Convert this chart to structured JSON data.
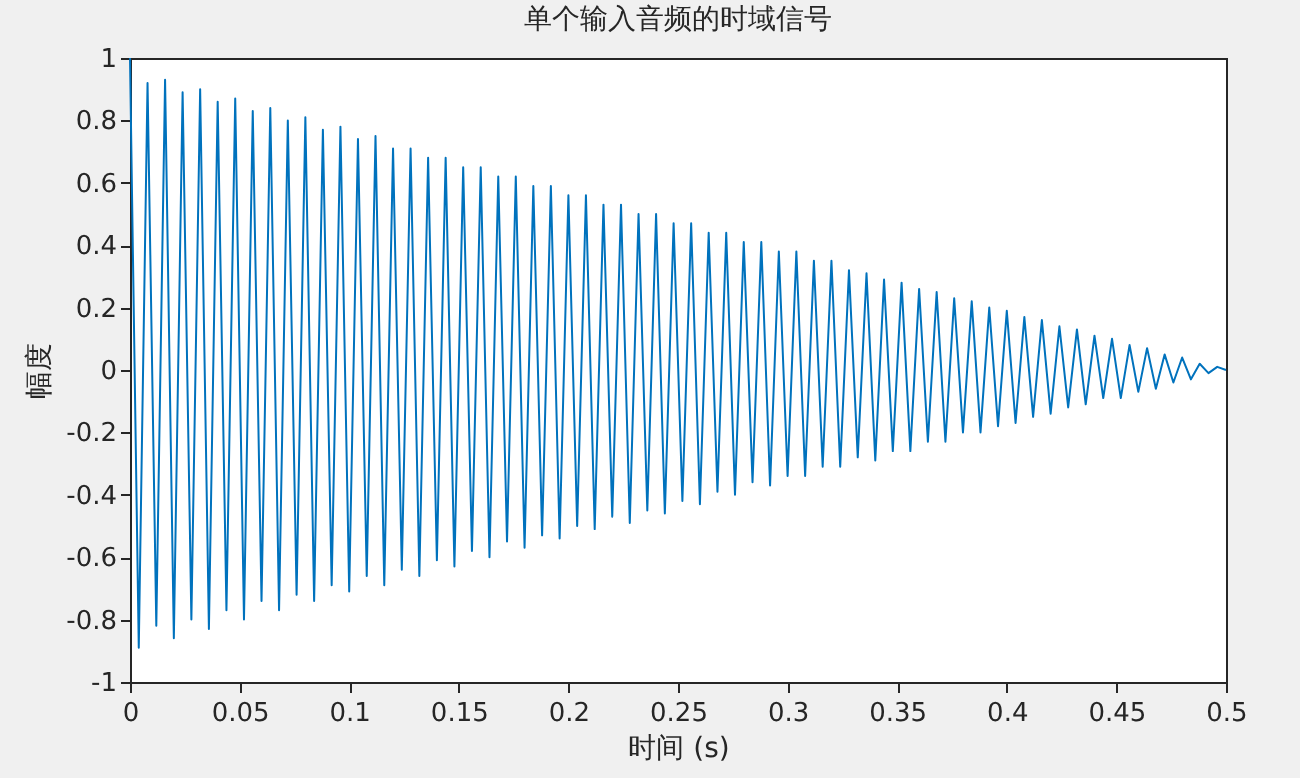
{
  "chart_data": {
    "type": "line",
    "title": "单个输入音频的时域信号",
    "xlabel": "时间 (s)",
    "ylabel": "幅度",
    "xlim": [
      0,
      0.5
    ],
    "ylim": [
      -1,
      1
    ],
    "xticks": [
      0,
      0.05,
      0.1,
      0.15,
      0.2,
      0.25,
      0.3,
      0.35,
      0.4,
      0.45,
      0.5
    ],
    "yticks": [
      -1,
      -0.8,
      -0.6,
      -0.4,
      -0.2,
      0,
      0.2,
      0.4,
      0.6,
      0.8,
      1
    ],
    "grid": false,
    "marker": "none",
    "line_style": "solid",
    "x": [
      0,
      0.004,
      0.008,
      0.012,
      0.016,
      0.02,
      0.024,
      0.028,
      0.032,
      0.036,
      0.04,
      0.044,
      0.048,
      0.052,
      0.056,
      0.06,
      0.064,
      0.068,
      0.072,
      0.076,
      0.08,
      0.084,
      0.088,
      0.092,
      0.096,
      0.1,
      0.104,
      0.108,
      0.112,
      0.116,
      0.12,
      0.124,
      0.128,
      0.132,
      0.136,
      0.14,
      0.144,
      0.148,
      0.152,
      0.156,
      0.16,
      0.164,
      0.168,
      0.172,
      0.176,
      0.18,
      0.184,
      0.188,
      0.192,
      0.196,
      0.2,
      0.204,
      0.208,
      0.212,
      0.216,
      0.22,
      0.224,
      0.228,
      0.232,
      0.236,
      0.24,
      0.244,
      0.248,
      0.252,
      0.256,
      0.26,
      0.264,
      0.268,
      0.272,
      0.276,
      0.28,
      0.284,
      0.288,
      0.292,
      0.296,
      0.3,
      0.304,
      0.308,
      0.312,
      0.316,
      0.32,
      0.324,
      0.328,
      0.332,
      0.336,
      0.34,
      0.344,
      0.348,
      0.352,
      0.356,
      0.36,
      0.364,
      0.368,
      0.372,
      0.376,
      0.38,
      0.384,
      0.388,
      0.392,
      0.396,
      0.4,
      0.404,
      0.408,
      0.412,
      0.416,
      0.42,
      0.424,
      0.428,
      0.432,
      0.436,
      0.44,
      0.444,
      0.448,
      0.452,
      0.456,
      0.46,
      0.464,
      0.468,
      0.472,
      0.476,
      0.48,
      0.484,
      0.488,
      0.492,
      0.496,
      0.5
    ],
    "series": [
      {
        "color": "#0072bd",
        "values": [
          1,
          -0.89,
          0.92,
          -0.82,
          0.93,
          -0.86,
          0.89,
          -0.8,
          0.9,
          -0.83,
          0.86,
          -0.77,
          0.87,
          -0.8,
          0.83,
          -0.74,
          0.84,
          -0.77,
          0.8,
          -0.72,
          0.81,
          -0.74,
          0.77,
          -0.69,
          0.78,
          -0.71,
          0.74,
          -0.66,
          0.75,
          -0.69,
          0.71,
          -0.64,
          0.71,
          -0.66,
          0.68,
          -0.61,
          0.68,
          -0.63,
          0.65,
          -0.58,
          0.65,
          -0.6,
          0.62,
          -0.55,
          0.62,
          -0.57,
          0.59,
          -0.53,
          0.59,
          -0.54,
          0.56,
          -0.5,
          0.56,
          -0.51,
          0.53,
          -0.47,
          0.53,
          -0.49,
          0.5,
          -0.45,
          0.5,
          -0.46,
          0.47,
          -0.42,
          0.47,
          -0.43,
          0.44,
          -0.39,
          0.44,
          -0.4,
          0.41,
          -0.36,
          0.41,
          -0.37,
          0.38,
          -0.34,
          0.38,
          -0.34,
          0.35,
          -0.31,
          0.35,
          -0.31,
          0.32,
          -0.28,
          0.31,
          -0.29,
          0.29,
          -0.26,
          0.28,
          -0.26,
          0.26,
          -0.23,
          0.25,
          -0.23,
          0.23,
          -0.2,
          0.22,
          -0.2,
          0.2,
          -0.18,
          0.19,
          -0.17,
          0.17,
          -0.15,
          0.16,
          -0.14,
          0.14,
          -0.12,
          0.13,
          -0.11,
          0.11,
          -0.09,
          0.1,
          -0.09,
          0.08,
          -0.07,
          0.07,
          -0.06,
          0.05,
          -0.04,
          0.04,
          -0.03,
          0.02,
          -0.01,
          0.01,
          0
        ]
      }
    ]
  }
}
